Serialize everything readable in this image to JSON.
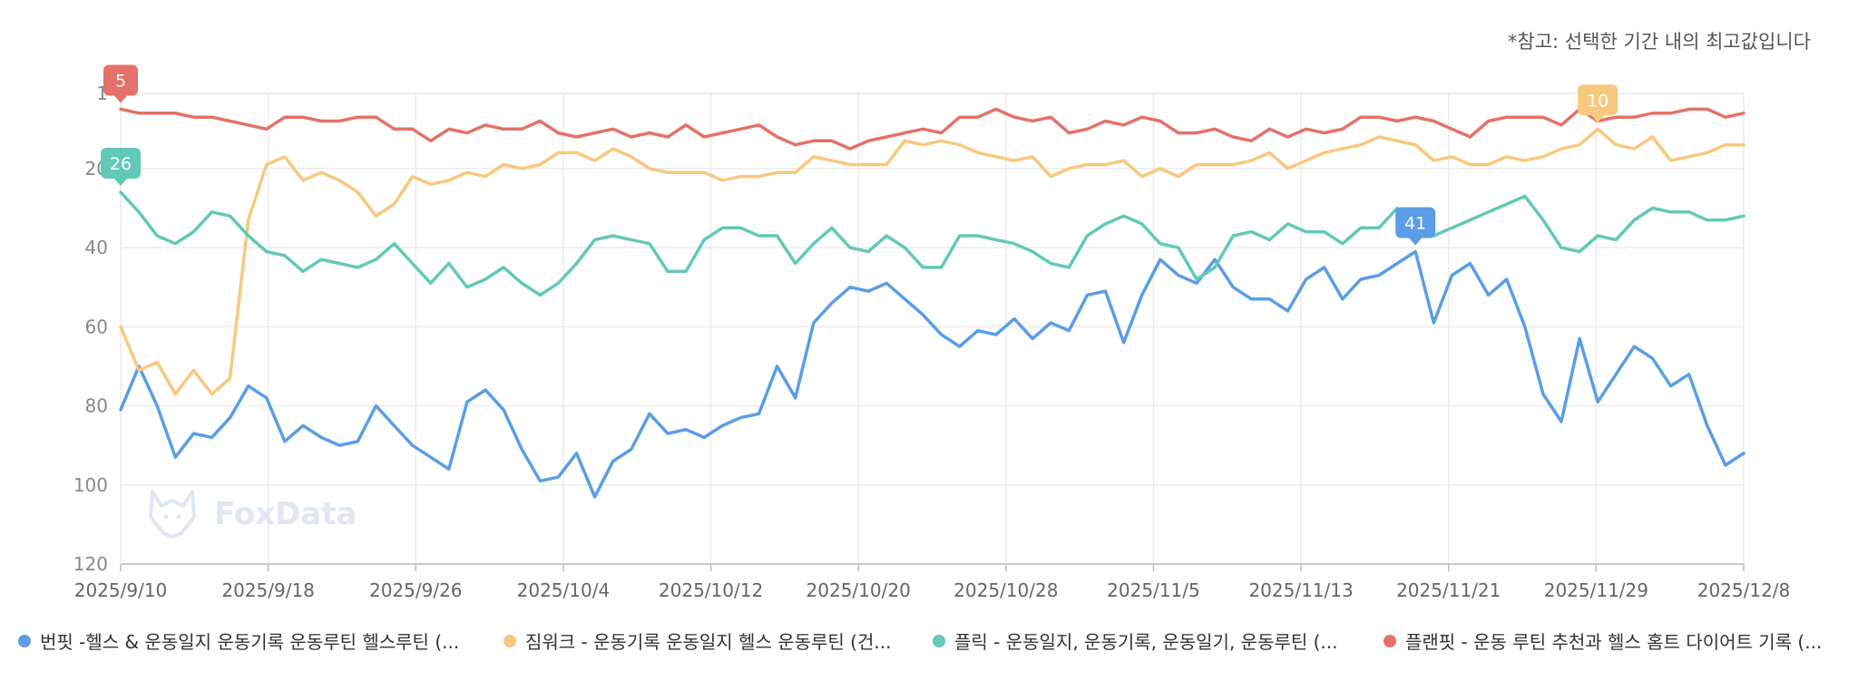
{
  "note": "*참고: 선택한 기간 내의 최고값입니다",
  "watermark": "FoxData",
  "chart_data": {
    "type": "line",
    "y_inverted": true,
    "ylim": [
      1,
      120
    ],
    "y_ticks": [
      "1",
      "20",
      "40",
      "60",
      "80",
      "100",
      "120"
    ],
    "x_ticks": [
      "2025/9/10",
      "2025/9/18",
      "2025/9/26",
      "2025/10/4",
      "2025/10/12",
      "2025/10/20",
      "2025/10/28",
      "2025/11/5",
      "2025/11/13",
      "2025/11/21",
      "2025/11/29",
      "2025/12/8"
    ],
    "x_start": "2025/9/10",
    "x_end": "2025/12/8",
    "grid": true,
    "legend_position": "bottom",
    "series": [
      {
        "name": "번핏 -헬스 & 운동일지 운동기록 운동루틴 헬스루틴 (...",
        "color": "#5b9de6",
        "values": [
          81,
          70,
          80,
          93,
          87,
          88,
          83,
          75,
          78,
          89,
          85,
          88,
          90,
          89,
          80,
          85,
          90,
          93,
          96,
          79,
          76,
          81,
          91,
          99,
          98,
          92,
          103,
          94,
          91,
          82,
          87,
          86,
          88,
          85,
          83,
          82,
          70,
          78,
          59,
          54,
          50,
          51,
          49,
          53,
          57,
          62,
          65,
          61,
          62,
          58,
          63,
          59,
          61,
          52,
          51,
          64,
          52,
          43,
          47,
          49,
          43,
          50,
          53,
          53,
          56,
          48,
          45,
          53,
          48,
          47,
          44,
          41,
          59,
          47,
          44,
          52,
          48,
          60,
          77,
          84,
          63,
          79,
          72,
          65,
          68,
          75,
          72,
          85,
          95,
          92
        ],
        "peak_label": "41",
        "peak_index": 71
      },
      {
        "name": "짐워크 - 운동기록 운동일지 헬스 운동루틴 (건...",
        "color": "#f7c97e",
        "values": [
          60,
          71,
          69,
          77,
          71,
          77,
          73,
          33,
          19,
          17,
          23,
          21,
          23,
          26,
          32,
          29,
          22,
          24,
          23,
          21,
          22,
          19,
          20,
          19,
          16,
          16,
          18,
          15,
          17,
          20,
          21,
          21,
          21,
          23,
          22,
          22,
          21,
          21,
          17,
          18,
          19,
          19,
          19,
          13,
          14,
          13,
          14,
          16,
          17,
          18,
          17,
          22,
          20,
          19,
          19,
          18,
          22,
          20,
          22,
          19,
          19,
          19,
          18,
          16,
          20,
          18,
          16,
          15,
          14,
          12,
          13,
          14,
          18,
          17,
          19,
          19,
          17,
          18,
          17,
          15,
          14,
          10,
          14,
          15,
          12,
          18,
          17,
          16,
          14,
          14
        ],
        "peak_label": "10",
        "peak_index": 81
      },
      {
        "name": "플릭 - 운동일지, 운동기록, 운동일기, 운동루틴 (...",
        "color": "#62c9b6",
        "values": [
          26,
          31,
          37,
          39,
          36,
          31,
          32,
          37,
          41,
          42,
          46,
          43,
          44,
          45,
          43,
          39,
          44,
          49,
          44,
          50,
          48,
          45,
          49,
          52,
          49,
          44,
          38,
          37,
          38,
          39,
          46,
          46,
          38,
          35,
          35,
          37,
          37,
          44,
          39,
          35,
          40,
          41,
          37,
          40,
          45,
          45,
          37,
          37,
          38,
          39,
          41,
          44,
          45,
          37,
          34,
          32,
          34,
          39,
          40,
          48,
          45,
          37,
          36,
          38,
          34,
          36,
          36,
          39,
          35,
          35,
          30,
          37,
          37,
          35,
          33,
          31,
          29,
          27,
          33,
          40,
          41,
          37,
          38,
          33,
          30,
          31,
          31,
          33,
          33,
          32
        ],
        "peak_label": "26",
        "peak_index": 0
      },
      {
        "name": "플랜핏 - 운동 루틴 추천과 헬스 홈트 다이어트 기록 (...",
        "color": "#e4716a",
        "values": [
          5,
          6,
          6,
          6,
          7,
          7,
          8,
          9,
          10,
          7,
          7,
          8,
          8,
          7,
          7,
          10,
          10,
          13,
          10,
          11,
          9,
          10,
          10,
          8,
          11,
          12,
          11,
          10,
          12,
          11,
          12,
          9,
          12,
          11,
          10,
          9,
          12,
          14,
          13,
          13,
          15,
          13,
          12,
          11,
          10,
          11,
          7,
          7,
          5,
          7,
          8,
          7,
          11,
          10,
          8,
          9,
          7,
          8,
          11,
          11,
          10,
          12,
          13,
          10,
          12,
          10,
          11,
          10,
          7,
          7,
          8,
          7,
          8,
          10,
          12,
          8,
          7,
          7,
          7,
          9,
          5,
          8,
          7,
          7,
          6,
          6,
          5,
          5,
          7,
          6
        ],
        "peak_label": "5",
        "peak_index": 0
      }
    ]
  }
}
